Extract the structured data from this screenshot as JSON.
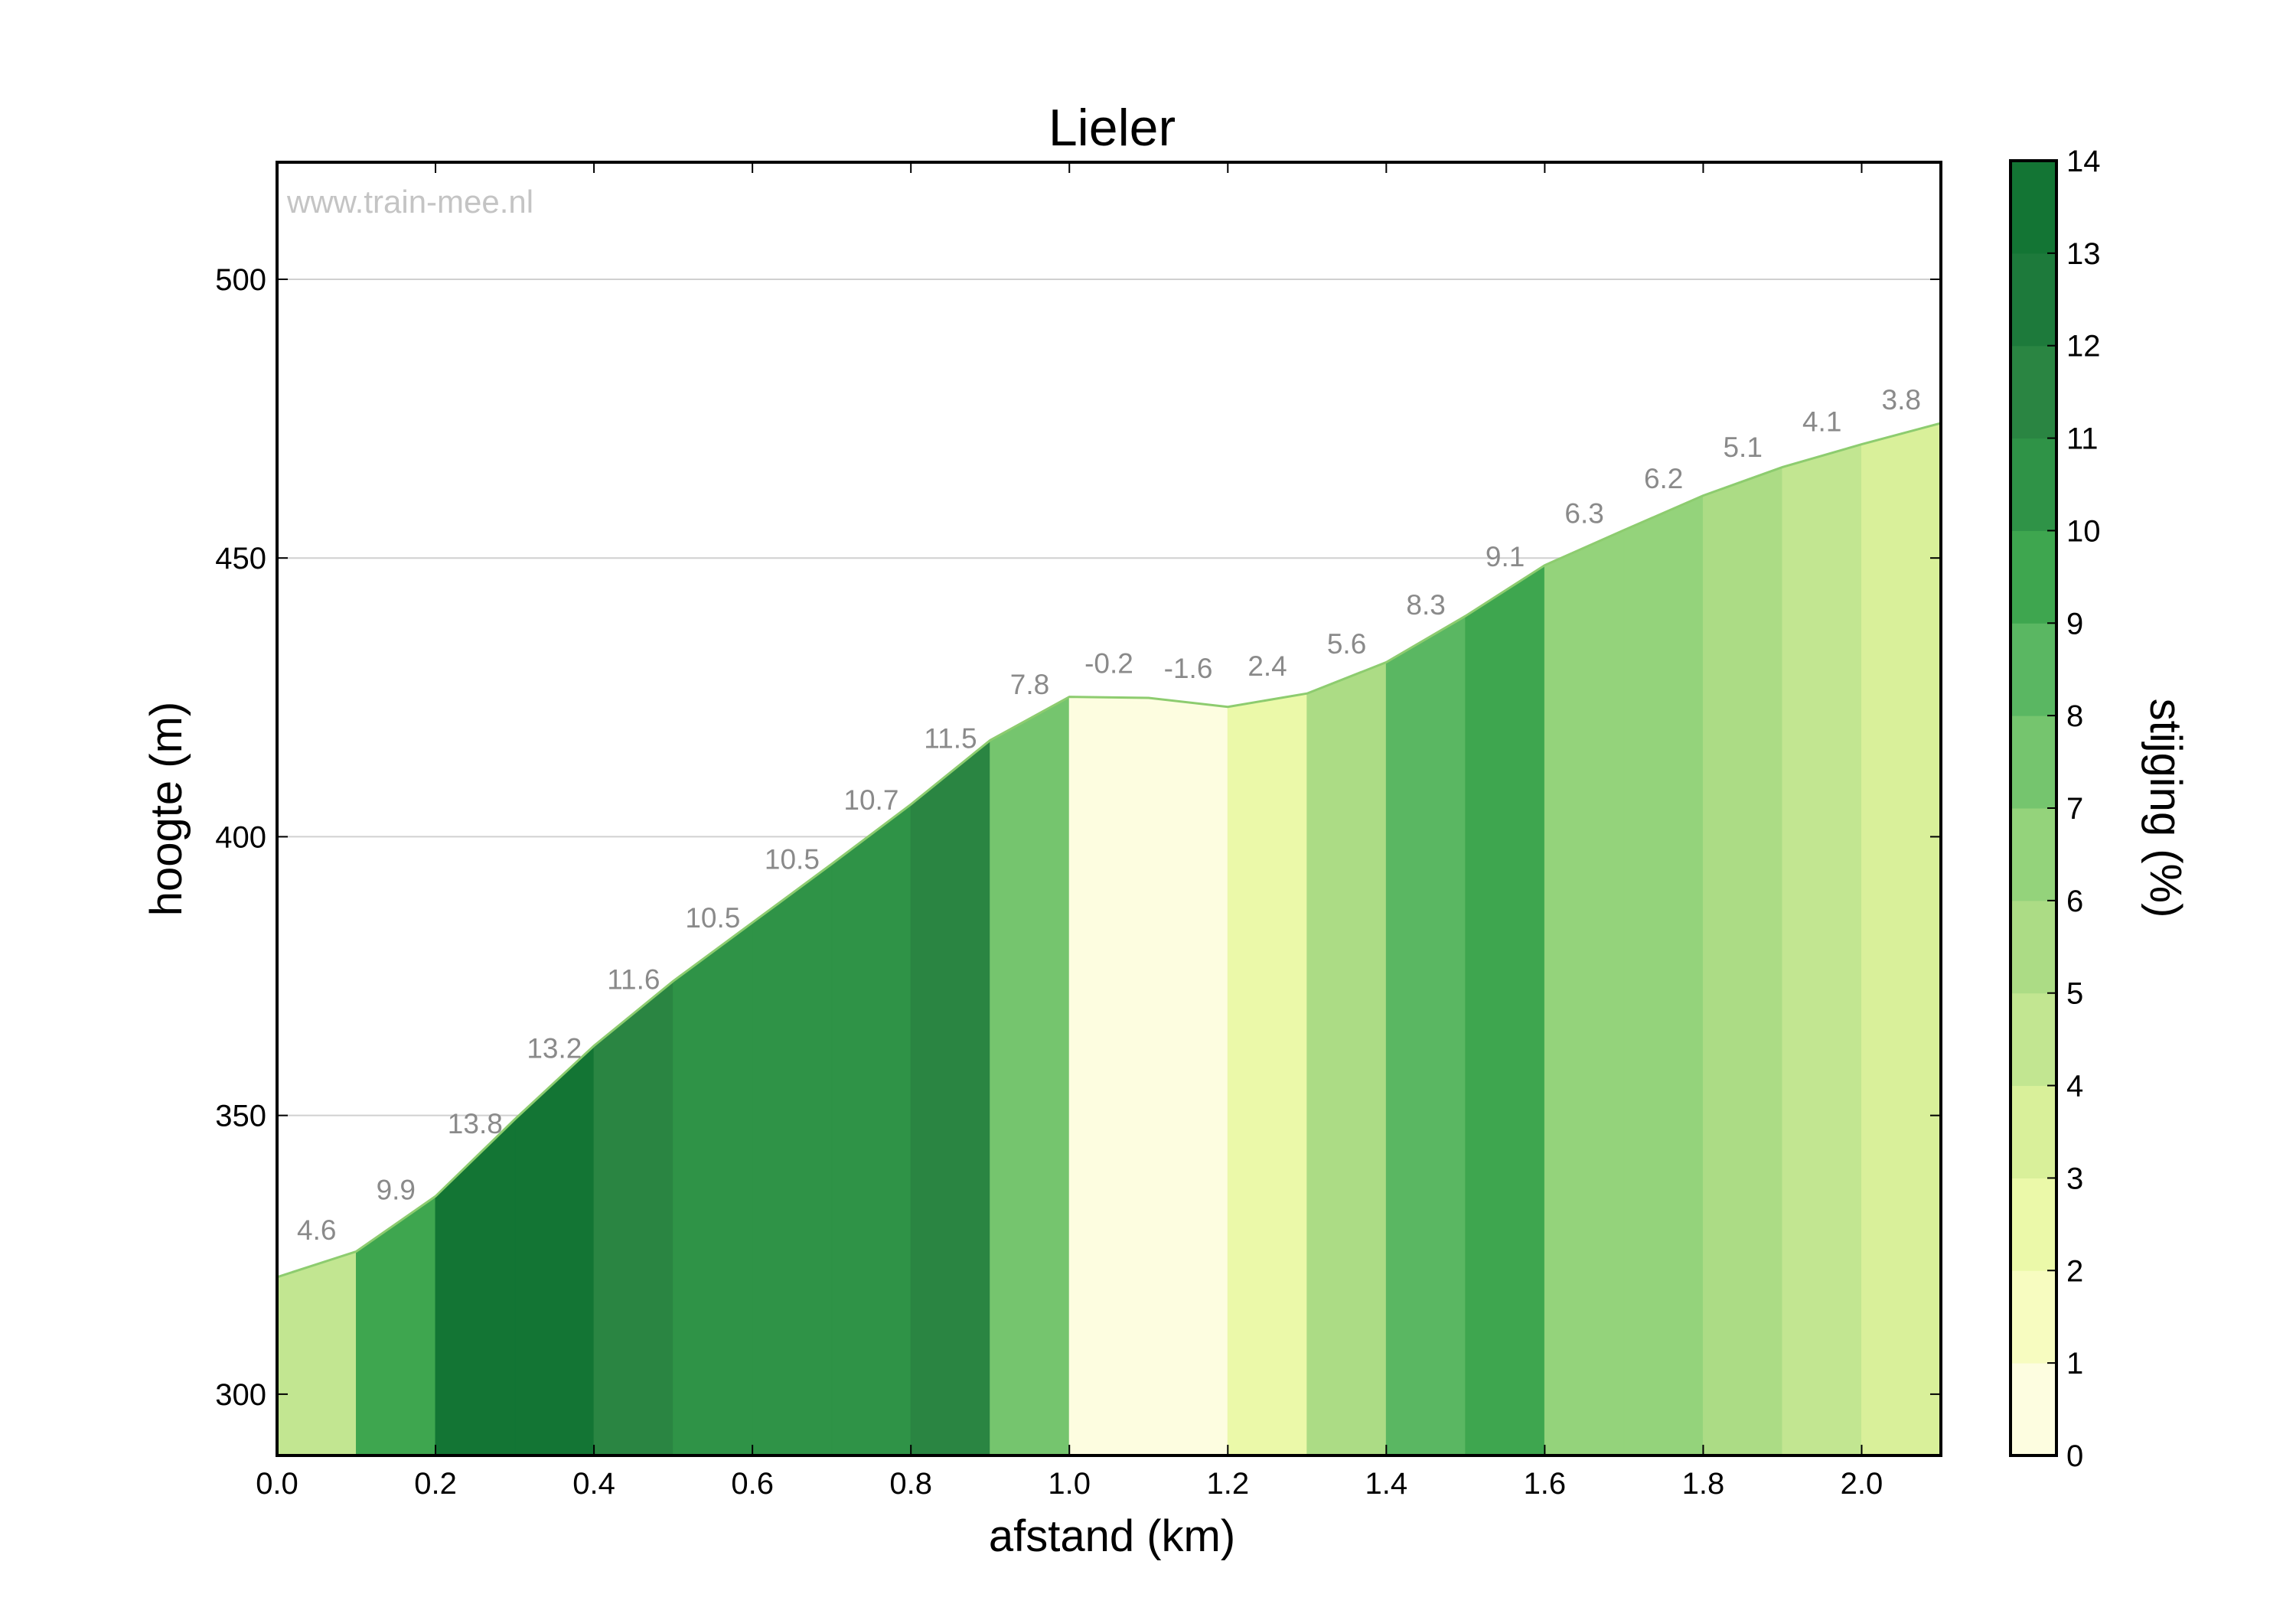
{
  "chart_data": {
    "type": "area",
    "title": "Lieler",
    "watermark": "www.train-mee.nl",
    "xlabel": "afstand (km)",
    "ylabel": "hoogte (m)",
    "colorbar_label": "stijging (%)",
    "xlim": [
      0,
      2.1
    ],
    "ylim": [
      289,
      521
    ],
    "xticks": [
      "0.0",
      "0.2",
      "0.4",
      "0.6",
      "0.8",
      "1.0",
      "1.2",
      "1.4",
      "1.6",
      "1.8",
      "2.0"
    ],
    "yticks": [
      "300",
      "350",
      "400",
      "450",
      "500"
    ],
    "colorbar_ticks": [
      "0",
      "1",
      "2",
      "3",
      "4",
      "5",
      "6",
      "7",
      "8",
      "9",
      "10",
      "11",
      "12",
      "13",
      "14"
    ],
    "grid": "horizontal",
    "distance": [
      0.0,
      0.1,
      0.2,
      0.3,
      0.4,
      0.5,
      0.6,
      0.7,
      0.8,
      0.9,
      1.0,
      1.1,
      1.2,
      1.3,
      1.4,
      1.5,
      1.6,
      1.7,
      1.8,
      1.9,
      2.0,
      2.1
    ],
    "elevation": [
      321,
      325.6,
      335.5,
      349.3,
      362.5,
      374.1,
      384.6,
      395.1,
      405.8,
      417.3,
      425.1,
      424.9,
      423.3,
      425.7,
      431.3,
      439.6,
      448.7,
      455.0,
      461.2,
      466.3,
      470.4,
      474.2
    ],
    "gradients": [
      "4.6",
      "9.9",
      "13.8",
      "13.2",
      "11.6",
      "10.5",
      "10.5",
      "10.7",
      "11.5",
      "7.8",
      "-0.2",
      "-1.6",
      "2.4",
      "5.6",
      "8.3",
      "9.1",
      "6.3",
      "6.2",
      "5.1",
      "4.1",
      "3.8"
    ],
    "colors": [
      "#fdfde0",
      "#f7fcc0",
      "#ebf9a9",
      "#d9f09a",
      "#c2e691",
      "#acdc85",
      "#94d37b",
      "#75c56e",
      "#5ab762",
      "#3ea64f",
      "#2f9347",
      "#2a8542",
      "#1d7a3b",
      "#137534",
      "#02622f"
    ]
  }
}
